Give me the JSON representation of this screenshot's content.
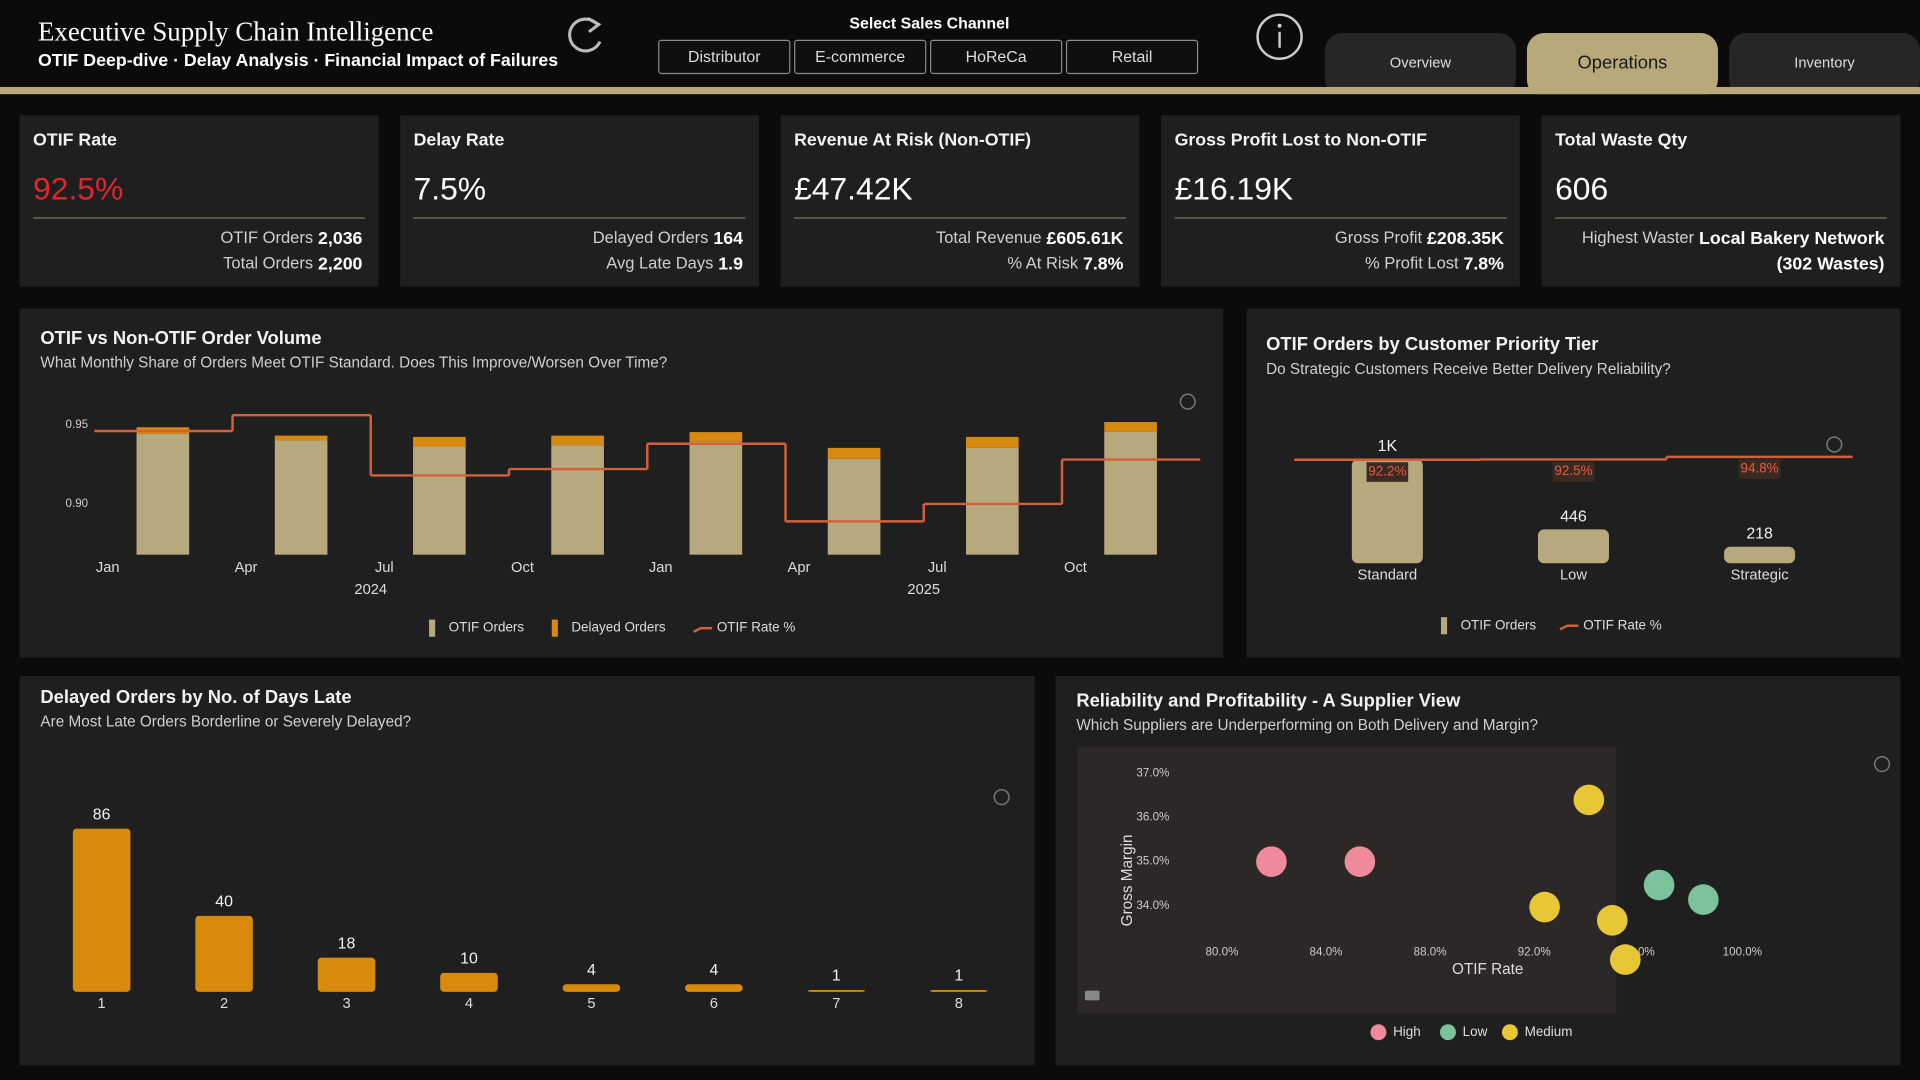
{
  "header": {
    "title": "Executive Supply Chain Intelligence",
    "subtitle": "OTIF Deep-dive · Delay Analysis · Financial Impact of Failures",
    "channel_label": "Select Sales Channel",
    "channels": [
      "Distributor",
      "E-commerce",
      "HoReCa",
      "Retail"
    ],
    "tabs": [
      "Overview",
      "Operations",
      "Inventory"
    ],
    "active_tab": 1
  },
  "kpis": [
    {
      "label": "OTIF Rate",
      "value": "92.5%",
      "value_color": "#e0262b",
      "details": [
        {
          "label": "OTIF Orders",
          "value": "2,036"
        },
        {
          "label": "Total Orders",
          "value": "2,200"
        }
      ]
    },
    {
      "label": "Delay Rate",
      "value": "7.5%",
      "value_color": "#ffffff",
      "details": [
        {
          "label": "Delayed Orders",
          "value": "164"
        },
        {
          "label": "Avg Late Days",
          "value": "1.9"
        }
      ]
    },
    {
      "label": "Revenue At Risk (Non-OTIF)",
      "value": "£47.42K",
      "value_color": "#ffffff",
      "details": [
        {
          "label": "Total Revenue",
          "value": "£605.61K"
        },
        {
          "label": "% At Risk",
          "value": "7.8%"
        }
      ]
    },
    {
      "label": "Gross Profit Lost to Non-OTIF",
      "value": "£16.19K",
      "value_color": "#ffffff",
      "details": [
        {
          "label": "Gross Profit",
          "value": "£208.35K"
        },
        {
          "label": "% Profit Lost",
          "value": "7.8%"
        }
      ]
    },
    {
      "label": "Total Waste Qty",
      "value": "606",
      "value_color": "#ffffff",
      "details": [
        {
          "label": "Highest Waster",
          "value": "Local Bakery Network"
        },
        {
          "value": "(302 Wastes)"
        }
      ]
    }
  ],
  "chart_data": [
    {
      "type": "combo",
      "title": "OTIF vs Non-OTIF Order Volume",
      "subtitle": "What Monthly Share of Orders Meet OTIF Standard. Does This Improve/Worsen Over Time?",
      "categories": [
        "Jan",
        "Apr",
        "Jul",
        "Oct",
        "Jan",
        "Apr",
        "Jul",
        "Oct"
      ],
      "x_groups": [
        "2024",
        "2025"
      ],
      "series": [
        {
          "name": "OTIF Orders",
          "type": "bar",
          "axis": "y2",
          "color": "#b7a97e",
          "values": [
            276,
            261,
            247,
            250,
            258,
            219,
            244,
            281
          ]
        },
        {
          "name": "Delayed Orders",
          "type": "bar",
          "axis": "y2",
          "color": "#d68a10",
          "values": [
            15,
            11,
            22,
            22,
            22,
            25,
            25,
            22
          ]
        },
        {
          "name": "OTIF Rate %",
          "type": "step",
          "color": "#d4603a",
          "values": [
            0.946,
            0.956,
            0.918,
            0.922,
            0.938,
            0.889,
            0.9,
            0.928
          ]
        }
      ],
      "stacked": true,
      "ylim": [
        0.868,
        0.963
      ],
      "yticks": [
        {
          "value": 0.9,
          "label": "0.90"
        },
        0.95
      ],
      "y2lim": [
        0,
        344
      ],
      "data_labels": false
    },
    {
      "type": "combo",
      "title": "OTIF Orders by Customer Priority Tier",
      "subtitle": "Do Strategic Customers Receive Better Delivery Reliability?",
      "categories": [
        "Standard",
        "Low",
        "Strategic"
      ],
      "series": [
        {
          "name": "OTIF Orders",
          "type": "bar",
          "color": "#b7a97e",
          "values": [
            1372,
            446,
            218
          ],
          "value_labels": [
            "1K",
            "446",
            "218"
          ]
        },
        {
          "name": "OTIF Rate %",
          "type": "step",
          "axis": "y2",
          "color": "#d4603a",
          "values": [
            92.2,
            92.5,
            94.8
          ],
          "value_labels": [
            "92.2%",
            "92.5%",
            "94.8%"
          ]
        }
      ],
      "stacked": true,
      "ylim": [
        0,
        1775
      ],
      "y2lim": [
        0,
        120
      ],
      "data_labels": true
    },
    {
      "type": "bar",
      "title": "Delayed Orders by No. of Days Late",
      "subtitle": "Are Most Late Orders Borderline or Severely Delayed?",
      "categories": [
        "1",
        "2",
        "3",
        "4",
        "5",
        "6",
        "7",
        "8"
      ],
      "values": [
        86,
        40,
        18,
        10,
        4,
        4,
        1,
        1
      ],
      "color": "#d88a0c",
      "ylim": [
        0,
        100
      ],
      "data_labels": true
    },
    {
      "type": "scatter",
      "title": "Reliability and Profitability - A Supplier View",
      "subtitle": "Which Suppliers are Underperforming on Both Delivery and Margin?",
      "x_label": "OTIF Rate",
      "y_label": "Gross Margin",
      "xlim": [
        74.45,
        100.85
      ],
      "xticks": [
        {
          "value": 80,
          "label": "80.0%"
        },
        {
          "value": 84,
          "label": "84.0%"
        },
        {
          "value": 88,
          "label": "88.0%"
        },
        {
          "value": 92,
          "label": "92.0%"
        },
        {
          "value": 96,
          "label": "96.0%"
        },
        {
          "value": 100,
          "label": "100.0%"
        }
      ],
      "ylim": [
        31.55,
        37.6
      ],
      "yticks": [
        {
          "value": 34,
          "label": "34.0%"
        },
        {
          "value": 35,
          "label": "35.0%"
        },
        {
          "value": 36,
          "label": "36.0%"
        },
        {
          "value": 37,
          "label": "37.0%"
        }
      ],
      "series": [
        {
          "name": "High",
          "color": "#ee8a9a",
          "x": [
            81.9,
            85.3
          ],
          "values": [
            35.0,
            35.0
          ]
        },
        {
          "name": "Low",
          "color": "#7cc29a",
          "x": [
            96.8,
            98.5
          ],
          "values": [
            34.47,
            34.14
          ]
        },
        {
          "name": "Medium",
          "color": "#e8c736",
          "x": [
            94.1,
            92.4,
            95.0,
            95.5
          ],
          "values": [
            36.4,
            33.97,
            33.67,
            32.78
          ]
        }
      ]
    }
  ]
}
